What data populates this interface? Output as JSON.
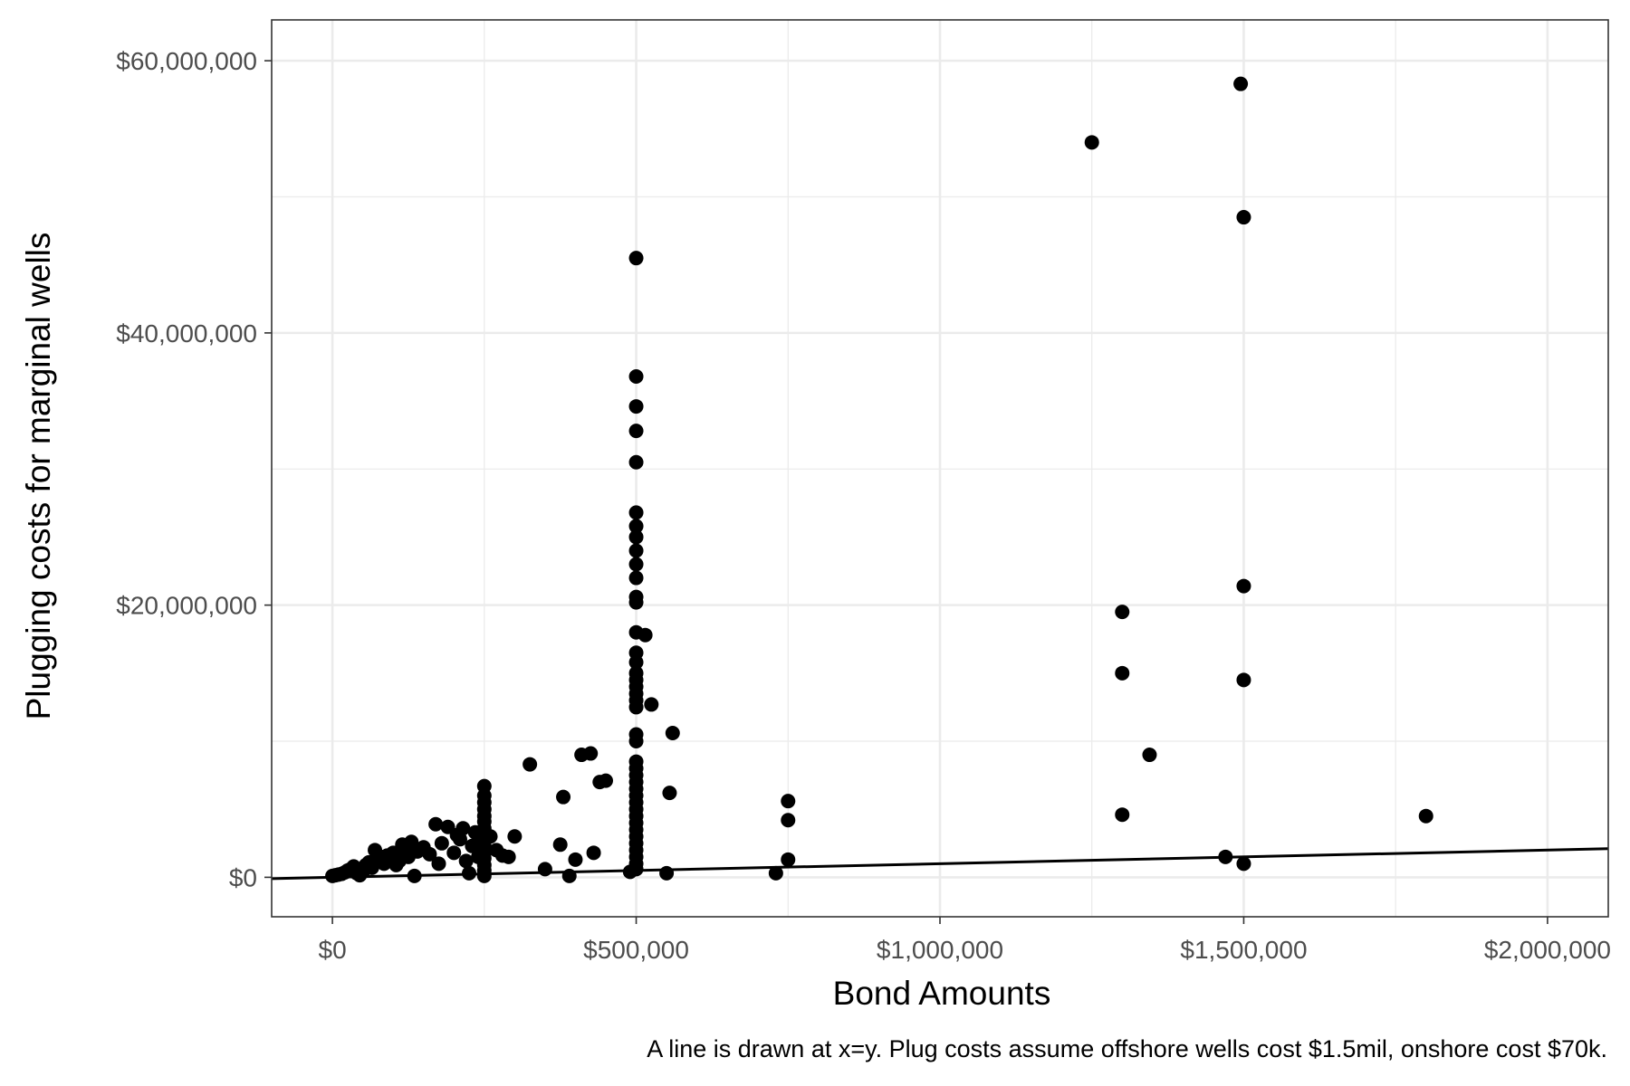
{
  "chart_data": {
    "type": "scatter",
    "title": "",
    "xlabel": "Bond Amounts",
    "ylabel": "Plugging costs for marginal wells",
    "caption": "A line is drawn at x=y.  Plug costs assume offshore wells cost $1.5mil, onshore cost $70k.",
    "xlim": [
      -100000,
      2100000
    ],
    "ylim": [
      -2900000,
      63000000
    ],
    "x_ticks": [
      0,
      500000,
      1000000,
      1500000,
      2000000
    ],
    "x_tick_labels": [
      "$0",
      "$500,000",
      "$1,000,000",
      "$1,500,000",
      "$2,000,000"
    ],
    "y_ticks": [
      0,
      20000000,
      40000000,
      60000000
    ],
    "y_tick_labels": [
      "$0",
      "$20,000,000",
      "$40,000,000",
      "$60,000,000"
    ],
    "grid": true,
    "point_color": "#000000",
    "reference_line": {
      "label": "x=y",
      "slope": 1,
      "intercept": 0,
      "color": "#000000"
    },
    "points": [
      [
        0,
        100000
      ],
      [
        5000,
        150000
      ],
      [
        10000,
        200000
      ],
      [
        15000,
        250000
      ],
      [
        20000,
        350000
      ],
      [
        25000,
        500000
      ],
      [
        30000,
        600000
      ],
      [
        35000,
        800000
      ],
      [
        40000,
        300000
      ],
      [
        45000,
        150000
      ],
      [
        50000,
        400000
      ],
      [
        55000,
        900000
      ],
      [
        60000,
        1100000
      ],
      [
        65000,
        700000
      ],
      [
        70000,
        2000000
      ],
      [
        75000,
        1300000
      ],
      [
        80000,
        1500000
      ],
      [
        85000,
        1000000
      ],
      [
        90000,
        1600000
      ],
      [
        100000,
        1800000
      ],
      [
        105000,
        900000
      ],
      [
        110000,
        1200000
      ],
      [
        115000,
        2400000
      ],
      [
        120000,
        2000000
      ],
      [
        125000,
        1500000
      ],
      [
        130000,
        2600000
      ],
      [
        135000,
        100000
      ],
      [
        140000,
        1900000
      ],
      [
        150000,
        2200000
      ],
      [
        160000,
        1700000
      ],
      [
        170000,
        3900000
      ],
      [
        175000,
        1000000
      ],
      [
        180000,
        2500000
      ],
      [
        190000,
        3700000
      ],
      [
        200000,
        1800000
      ],
      [
        205000,
        3100000
      ],
      [
        210000,
        2800000
      ],
      [
        215000,
        3600000
      ],
      [
        220000,
        1200000
      ],
      [
        225000,
        300000
      ],
      [
        230000,
        2300000
      ],
      [
        235000,
        3300000
      ],
      [
        240000,
        1500000
      ],
      [
        245000,
        2600000
      ],
      [
        250000,
        100000
      ],
      [
        250000,
        500000
      ],
      [
        250000,
        900000
      ],
      [
        250000,
        1400000
      ],
      [
        250000,
        1800000
      ],
      [
        250000,
        2300000
      ],
      [
        250000,
        2700000
      ],
      [
        250000,
        3200000
      ],
      [
        250000,
        3600000
      ],
      [
        250000,
        4100000
      ],
      [
        250000,
        4500000
      ],
      [
        250000,
        5000000
      ],
      [
        250000,
        5500000
      ],
      [
        250000,
        6000000
      ],
      [
        250000,
        6700000
      ],
      [
        260000,
        3000000
      ],
      [
        270000,
        2000000
      ],
      [
        280000,
        1600000
      ],
      [
        290000,
        1500000
      ],
      [
        300000,
        3000000
      ],
      [
        325000,
        8300000
      ],
      [
        350000,
        600000
      ],
      [
        375000,
        2400000
      ],
      [
        380000,
        5900000
      ],
      [
        390000,
        100000
      ],
      [
        400000,
        1300000
      ],
      [
        410000,
        9000000
      ],
      [
        425000,
        9100000
      ],
      [
        430000,
        1800000
      ],
      [
        440000,
        7000000
      ],
      [
        450000,
        7100000
      ],
      [
        490000,
        400000
      ],
      [
        500000,
        600000
      ],
      [
        500000,
        1000000
      ],
      [
        500000,
        1500000
      ],
      [
        500000,
        2000000
      ],
      [
        500000,
        2500000
      ],
      [
        500000,
        3000000
      ],
      [
        500000,
        3500000
      ],
      [
        500000,
        4000000
      ],
      [
        500000,
        4500000
      ],
      [
        500000,
        5000000
      ],
      [
        500000,
        5500000
      ],
      [
        500000,
        6000000
      ],
      [
        500000,
        6500000
      ],
      [
        500000,
        7000000
      ],
      [
        500000,
        7500000
      ],
      [
        500000,
        8000000
      ],
      [
        500000,
        8500000
      ],
      [
        500000,
        10000000
      ],
      [
        500000,
        10500000
      ],
      [
        500000,
        12500000
      ],
      [
        500000,
        13000000
      ],
      [
        500000,
        13500000
      ],
      [
        500000,
        14000000
      ],
      [
        500000,
        14500000
      ],
      [
        500000,
        15000000
      ],
      [
        500000,
        15800000
      ],
      [
        500000,
        16500000
      ],
      [
        500000,
        18000000
      ],
      [
        500000,
        20200000
      ],
      [
        500000,
        20600000
      ],
      [
        500000,
        22000000
      ],
      [
        500000,
        23000000
      ],
      [
        500000,
        24000000
      ],
      [
        500000,
        25000000
      ],
      [
        500000,
        25800000
      ],
      [
        500000,
        26800000
      ],
      [
        500000,
        30500000
      ],
      [
        500000,
        32800000
      ],
      [
        500000,
        34600000
      ],
      [
        500000,
        36800000
      ],
      [
        500000,
        45500000
      ],
      [
        515000,
        17800000
      ],
      [
        525000,
        12700000
      ],
      [
        550000,
        300000
      ],
      [
        555000,
        6200000
      ],
      [
        560000,
        10600000
      ],
      [
        730000,
        300000
      ],
      [
        750000,
        1300000
      ],
      [
        750000,
        4200000
      ],
      [
        750000,
        5600000
      ],
      [
        1250000,
        54000000
      ],
      [
        1300000,
        4600000
      ],
      [
        1300000,
        15000000
      ],
      [
        1300000,
        19500000
      ],
      [
        1345000,
        9000000
      ],
      [
        1470000,
        1500000
      ],
      [
        1495000,
        58300000
      ],
      [
        1500000,
        1000000
      ],
      [
        1500000,
        14500000
      ],
      [
        1500000,
        21400000
      ],
      [
        1500000,
        48500000
      ],
      [
        1800000,
        4500000
      ]
    ]
  }
}
